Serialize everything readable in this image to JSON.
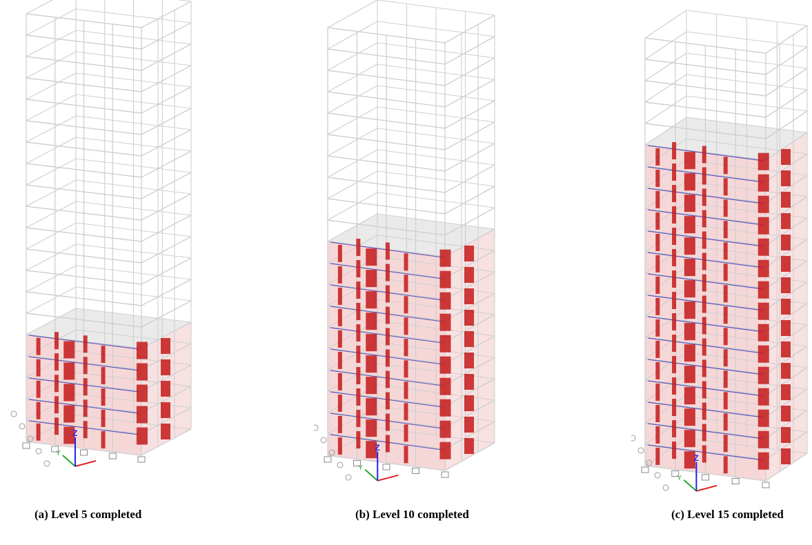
{
  "figure": {
    "panels": [
      {
        "id": "a",
        "caption": "(a) Level 5 completed",
        "completed_levels": 5
      },
      {
        "id": "b",
        "caption": "(b) Level 10 completed",
        "completed_levels": 10
      },
      {
        "id": "c",
        "caption": "(c) Level 15 completed",
        "completed_levels": 15
      }
    ],
    "total_levels": 20,
    "colors": {
      "frame": "#cfcfcf",
      "slab": "#f3c9c9",
      "wall": "#c41a1a",
      "beam": "#3a3ab8",
      "axis_x": "#e02020",
      "axis_y": "#22aa22",
      "axis_z": "#2222ee"
    },
    "axis_labels": {
      "x": "X",
      "y": "Y",
      "z": "Z"
    }
  }
}
